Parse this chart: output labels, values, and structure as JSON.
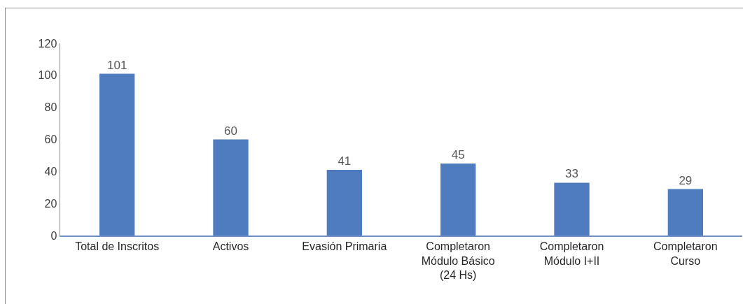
{
  "chart_data": {
    "type": "bar",
    "categories": [
      "Total de Inscritos",
      "Activos",
      "Evasión Primaria",
      "Completaron Módulo Básico (24 Hs)",
      "Completaron Módulo I+II",
      "Completaron Curso"
    ],
    "values": [
      101,
      60,
      41,
      45,
      33,
      29
    ],
    "color": "#4f7bbf",
    "ylim": [
      0,
      120
    ],
    "yticks": [
      0,
      20,
      40,
      60,
      80,
      100,
      120
    ],
    "data_labels": true
  }
}
